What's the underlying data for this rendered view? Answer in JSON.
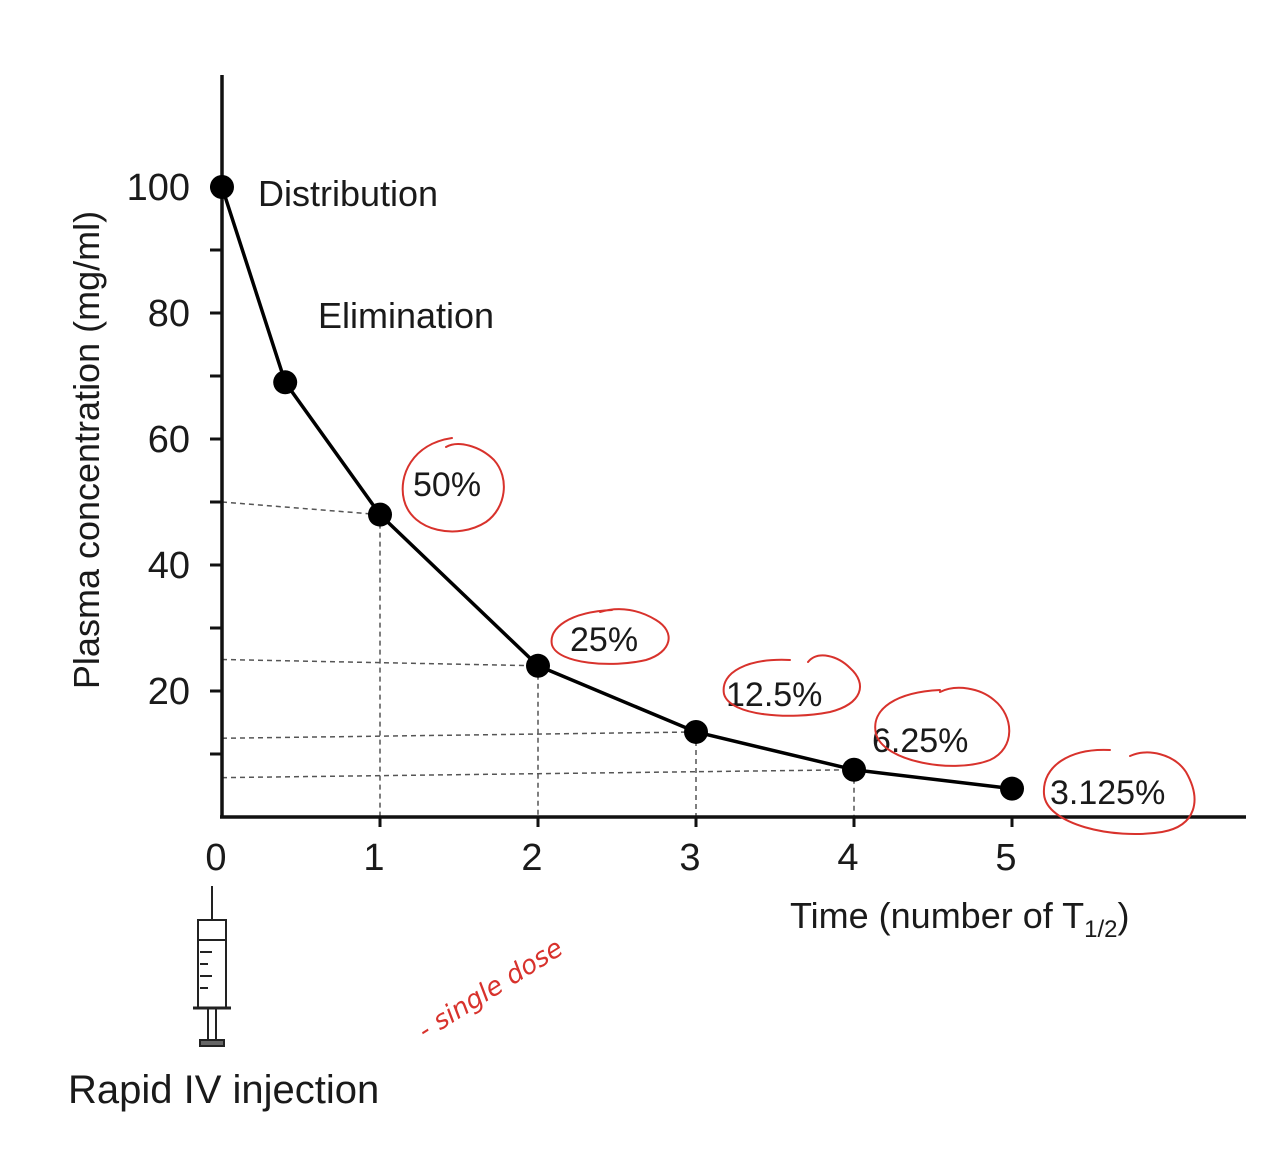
{
  "chart_data": {
    "type": "line",
    "ylabel": "Plasma concentration (mg/ml)",
    "xlabel": "Time (number of ",
    "xlabel_sub_base": "T",
    "xlabel_sub": "1/2",
    "xlabel_close": ")",
    "x_ticks": [
      "0",
      "1",
      "2",
      "3",
      "4",
      "5"
    ],
    "y_ticks": [
      "20",
      "40",
      "60",
      "80",
      "100"
    ],
    "xlim": [
      0,
      6.5
    ],
    "ylim": [
      0,
      100
    ],
    "points": [
      {
        "x": 0,
        "y": 100
      },
      {
        "x": 0.4,
        "y": 69
      },
      {
        "x": 1,
        "y": 48
      },
      {
        "x": 2,
        "y": 24
      },
      {
        "x": 3,
        "y": 13.5
      },
      {
        "x": 4,
        "y": 7.5
      },
      {
        "x": 5,
        "y": 4.5
      }
    ],
    "guide_levels": [
      50,
      25,
      12.5,
      6.25
    ],
    "annotations": {
      "distribution": "Distribution",
      "elimination": "Elimination",
      "percentages": [
        "50%",
        "25%",
        "12.5%",
        "6.25%",
        "3.125%"
      ]
    },
    "injection_label": "Rapid IV injection",
    "handwritten_note": "- single dose",
    "colors": {
      "line": "#000000",
      "annotation": "#d8322c",
      "guides": "#555555"
    }
  }
}
